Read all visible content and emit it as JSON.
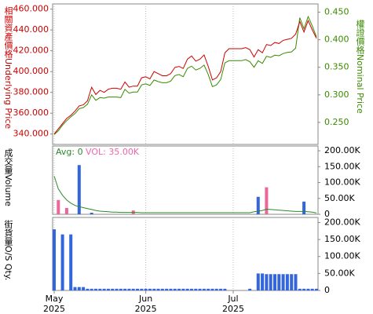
{
  "chart_data": [
    {
      "type": "line",
      "left_label": "相關資產價格Underlying Price",
      "right_label": "權證價格Nominal Price",
      "xlim": [
        0,
        63
      ],
      "ylim": [
        330,
        465
      ],
      "yticks": [
        {
          "value": 340,
          "label": "340.000"
        },
        {
          "value": 360,
          "label": "360.000"
        },
        {
          "value": 380,
          "label": "380.000"
        },
        {
          "value": 400,
          "label": "400.000"
        },
        {
          "value": 420,
          "label": "420.000"
        },
        {
          "value": 440,
          "label": "440.000"
        },
        {
          "value": 460,
          "label": "460.000"
        }
      ],
      "y2lim": [
        0.21,
        0.465
      ],
      "y2ticks": [
        {
          "value": 0.25,
          "label": "0.250"
        },
        {
          "value": 0.3,
          "label": "0.300"
        },
        {
          "value": 0.35,
          "label": "0.350"
        },
        {
          "value": 0.4,
          "label": "0.400"
        },
        {
          "value": 0.45,
          "label": "0.450"
        }
      ],
      "series": [
        {
          "color": "#cc0000",
          "values": [
            340,
            345,
            350,
            355,
            358,
            362,
            367,
            368,
            372,
            385,
            378,
            382,
            380,
            383,
            384,
            384,
            383,
            390,
            385,
            386,
            386,
            394,
            395,
            393,
            400,
            398,
            396,
            396,
            398,
            404,
            405,
            403,
            412,
            415,
            410,
            412,
            416,
            405,
            392,
            394,
            400,
            418,
            422,
            422,
            422,
            422,
            423,
            421,
            414,
            421,
            418,
            426,
            425,
            428,
            427,
            430,
            431,
            432,
            436,
            448,
            438,
            449,
            440,
            432
          ]
        },
        {
          "color": "#3a8a00",
          "axis": "y2",
          "values": [
            0.228,
            0.235,
            0.245,
            0.253,
            0.26,
            0.266,
            0.275,
            0.277,
            0.283,
            0.3,
            0.29,
            0.295,
            0.294,
            0.296,
            0.296,
            0.296,
            0.295,
            0.31,
            0.303,
            0.305,
            0.305,
            0.318,
            0.32,
            0.317,
            0.327,
            0.324,
            0.322,
            0.322,
            0.325,
            0.335,
            0.337,
            0.333,
            0.348,
            0.352,
            0.345,
            0.348,
            0.354,
            0.337,
            0.315,
            0.318,
            0.328,
            0.358,
            0.362,
            0.362,
            0.362,
            0.362,
            0.364,
            0.36,
            0.35,
            0.362,
            0.357,
            0.37,
            0.368,
            0.372,
            0.371,
            0.375,
            0.377,
            0.378,
            0.385,
            0.44,
            0.42,
            0.442,
            0.425,
            0.405
          ]
        }
      ]
    },
    {
      "type": "bar",
      "left_label": "成交量Volume",
      "legend": [
        "Avg: 0",
        "VOL: 35.00K"
      ],
      "legend_colors": [
        "#2a8a2a",
        "#ee66aa"
      ],
      "xlim": [
        0,
        63
      ],
      "ylim": [
        0,
        215000
      ],
      "yticks": [
        0,
        {
          "value": 50000,
          "label": "50.00K"
        },
        {
          "value": 100000,
          "label": "100.00K"
        },
        {
          "value": 150000,
          "label": "150.00K"
        },
        {
          "value": 200000,
          "label": "200.00K"
        }
      ],
      "bars": [
        {
          "index": 1,
          "value": 45000,
          "color": "#ee6699"
        },
        {
          "index": 3,
          "value": 20000,
          "color": "#ee6699"
        },
        {
          "index": 6,
          "value": 155000,
          "color": "#3366dd"
        },
        {
          "index": 9,
          "value": 5000,
          "color": "#3366dd"
        },
        {
          "index": 19,
          "value": 12000,
          "color": "#ee6699"
        },
        {
          "index": 49,
          "value": 55000,
          "color": "#3366dd"
        },
        {
          "index": 51,
          "value": 85000,
          "color": "#ee6699"
        },
        {
          "index": 60,
          "value": 40000,
          "color": "#3366dd"
        }
      ],
      "avg": {
        "color": "#2a8a2a",
        "values": [
          120000,
          80000,
          60000,
          45000,
          35000,
          28000,
          24000,
          21000,
          18000,
          15000,
          12000,
          10000,
          9000,
          8000,
          7000,
          7000,
          6000,
          6000,
          6000,
          6000,
          6000,
          5000,
          5000,
          5000,
          5000,
          5000,
          5000,
          5000,
          5000,
          5000,
          5000,
          5000,
          5000,
          5000,
          5000,
          5000,
          5000,
          5000,
          5000,
          5000,
          5000,
          5000,
          5000,
          5000,
          5000,
          5000,
          5000,
          5000,
          8000,
          10000,
          12000,
          16000,
          15000,
          14000,
          13000,
          12000,
          11000,
          10000,
          9000,
          9000,
          9000,
          8000,
          7000,
          4000
        ]
      }
    },
    {
      "type": "bar",
      "left_label": "街貨量O/S Qty.",
      "color": "#3366dd",
      "xlim": [
        0,
        63
      ],
      "ylim": [
        0,
        215000
      ],
      "yticks": [
        0,
        {
          "value": 50000,
          "label": "50.00K"
        },
        {
          "value": 100000,
          "label": "100.00K"
        },
        {
          "value": 150000,
          "label": "150.00K"
        },
        {
          "value": 200000,
          "label": "200.00K"
        }
      ],
      "values": [
        180000,
        null,
        165000,
        null,
        165000,
        10000,
        10000,
        10000,
        5000,
        5000,
        5000,
        5000,
        5000,
        5000,
        5000,
        5000,
        5000,
        5000,
        5000,
        5000,
        5000,
        5000,
        5000,
        5000,
        5000,
        5000,
        5000,
        5000,
        5000,
        5000,
        5000,
        5000,
        5000,
        5000,
        5000,
        5000,
        5000,
        5000,
        5000,
        5000,
        5000,
        5000,
        null,
        null,
        null,
        null,
        null,
        5000,
        null,
        50000,
        50000,
        48000,
        48000,
        48000,
        48000,
        48000,
        48000,
        48000,
        48000,
        5000,
        5000,
        5000,
        5000,
        5000
      ],
      "xticks": [
        {
          "value": 0,
          "label": "May",
          "year": "2025"
        },
        {
          "value": 22,
          "label": "Jun",
          "year": "2025"
        },
        {
          "value": 43,
          "label": "Jul",
          "year": "2025"
        }
      ]
    }
  ]
}
